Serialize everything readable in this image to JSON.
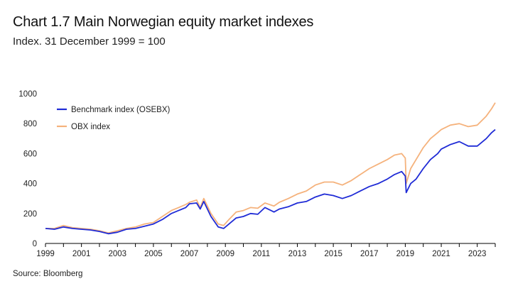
{
  "header": {
    "title": "Chart 1.7 Main Norwegian equity market indexes",
    "subtitle": "Index. 31 December 1999 = 100"
  },
  "footer": {
    "source": "Source: Bloomberg"
  },
  "colors": {
    "osebx": "#1f2bd6",
    "obx": "#f5b27c",
    "axis": "#000000"
  },
  "chart_data": {
    "type": "line",
    "title": "Chart 1.7 Main Norwegian equity market indexes",
    "subtitle": "Index. 31 December 1999 = 100",
    "xlabel": "",
    "ylabel": "",
    "xlim": [
      1999,
      2024
    ],
    "ylim": [
      0,
      1000
    ],
    "x_ticks": [
      1999,
      2001,
      2003,
      2005,
      2007,
      2009,
      2011,
      2013,
      2015,
      2017,
      2019,
      2021,
      2023
    ],
    "y_ticks": [
      0,
      200,
      400,
      600,
      800,
      1000
    ],
    "legend_position": "top-left",
    "series": [
      {
        "name": "Benchmark index (OSEBX)",
        "x": [
          1999.0,
          1999.5,
          2000.0,
          2000.5,
          2001.0,
          2001.5,
          2002.0,
          2002.5,
          2003.0,
          2003.5,
          2004.0,
          2004.5,
          2005.0,
          2005.5,
          2006.0,
          2006.4,
          2006.8,
          2007.0,
          2007.4,
          2007.6,
          2007.8,
          2008.2,
          2008.6,
          2008.9,
          2009.2,
          2009.6,
          2010.0,
          2010.4,
          2010.8,
          2011.2,
          2011.7,
          2012.0,
          2012.5,
          2013.0,
          2013.5,
          2014.0,
          2014.5,
          2015.0,
          2015.5,
          2016.0,
          2016.5,
          2017.0,
          2017.5,
          2018.0,
          2018.4,
          2018.8,
          2019.0,
          2019.05,
          2019.3,
          2019.6,
          2020.0,
          2020.4,
          2020.8,
          2021.0,
          2021.5,
          2022.0,
          2022.5,
          2023.0,
          2023.5,
          2023.8,
          2024.0
        ],
        "values": [
          100,
          95,
          110,
          100,
          95,
          90,
          80,
          65,
          75,
          95,
          100,
          115,
          130,
          160,
          200,
          220,
          240,
          265,
          270,
          230,
          280,
          180,
          110,
          100,
          130,
          170,
          180,
          200,
          195,
          240,
          210,
          230,
          245,
          270,
          280,
          310,
          330,
          320,
          300,
          320,
          350,
          380,
          400,
          430,
          460,
          480,
          450,
          340,
          400,
          430,
          500,
          560,
          600,
          630,
          660,
          680,
          650,
          650,
          700,
          740,
          760
        ]
      },
      {
        "name": "OBX index",
        "x": [
          1999.0,
          1999.5,
          2000.0,
          2000.5,
          2001.0,
          2001.5,
          2002.0,
          2002.5,
          2003.0,
          2003.5,
          2004.0,
          2004.5,
          2005.0,
          2005.5,
          2006.0,
          2006.4,
          2006.8,
          2007.0,
          2007.4,
          2007.6,
          2007.8,
          2008.2,
          2008.6,
          2008.9,
          2009.2,
          2009.6,
          2010.0,
          2010.4,
          2010.8,
          2011.2,
          2011.7,
          2012.0,
          2012.5,
          2013.0,
          2013.5,
          2014.0,
          2014.5,
          2015.0,
          2015.5,
          2016.0,
          2016.5,
          2017.0,
          2017.5,
          2018.0,
          2018.4,
          2018.8,
          2019.0,
          2019.05,
          2019.3,
          2019.6,
          2020.0,
          2020.4,
          2020.8,
          2021.0,
          2021.5,
          2022.0,
          2022.5,
          2023.0,
          2023.5,
          2023.8,
          2024.0
        ],
        "values": [
          100,
          100,
          120,
          105,
          100,
          95,
          85,
          70,
          85,
          100,
          110,
          130,
          140,
          180,
          220,
          240,
          260,
          275,
          290,
          240,
          300,
          200,
          130,
          120,
          160,
          210,
          220,
          240,
          235,
          270,
          250,
          275,
          300,
          330,
          350,
          390,
          410,
          410,
          390,
          420,
          460,
          500,
          530,
          560,
          590,
          600,
          570,
          400,
          500,
          560,
          640,
          700,
          740,
          760,
          790,
          800,
          780,
          790,
          850,
          900,
          940
        ]
      }
    ]
  }
}
